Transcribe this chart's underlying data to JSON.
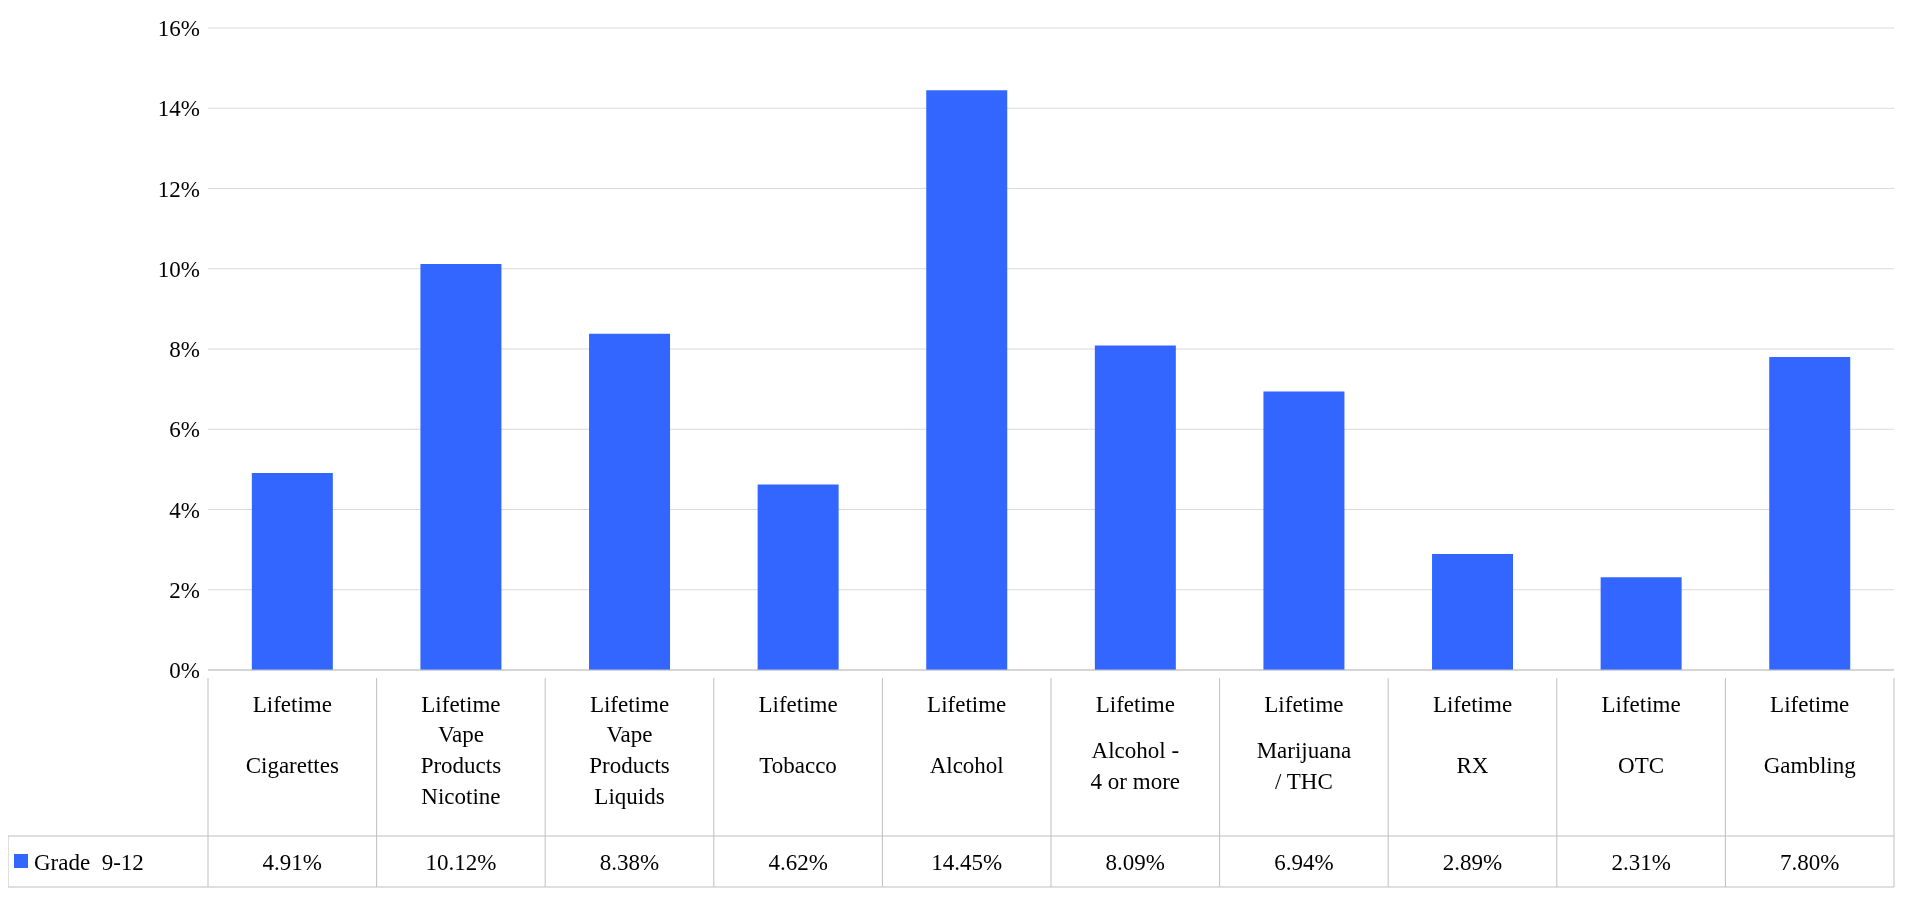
{
  "chart_data": {
    "type": "bar",
    "categories": [
      "Lifetime Cigarettes",
      "Lifetime Vape Products Nicotine",
      "Lifetime Vape Products Liquids",
      "Lifetime Tobacco",
      "Lifetime Alcohol",
      "Lifetime Alcohol - 4 or more",
      "Lifetime Marijuana / THC",
      "Lifetime RX",
      "Lifetime OTC",
      "Lifetime Gambling"
    ],
    "series": [
      {
        "name": "Grade  9-12",
        "color": "#3366ff",
        "values": [
          4.91,
          10.12,
          8.38,
          4.62,
          14.45,
          8.09,
          6.94,
          2.89,
          2.31,
          7.8
        ],
        "value_labels": [
          "4.91%",
          "10.12%",
          "8.38%",
          "4.62%",
          "14.45%",
          "8.09%",
          "6.94%",
          "2.89%",
          "2.31%",
          "7.80%"
        ]
      }
    ],
    "ylim": [
      0,
      16
    ],
    "yticks": [
      {
        "value": 0,
        "label": "0%"
      },
      {
        "value": 2,
        "label": "2%"
      },
      {
        "value": 4,
        "label": "4%"
      },
      {
        "value": 6,
        "label": "6%"
      },
      {
        "value": 8,
        "label": "8%"
      },
      {
        "value": 10,
        "label": "10%"
      },
      {
        "value": 12,
        "label": "12%"
      },
      {
        "value": 14,
        "label": "14%"
      },
      {
        "value": 16,
        "label": "16%"
      }
    ],
    "grid": "y",
    "legend": "bottom left"
  }
}
